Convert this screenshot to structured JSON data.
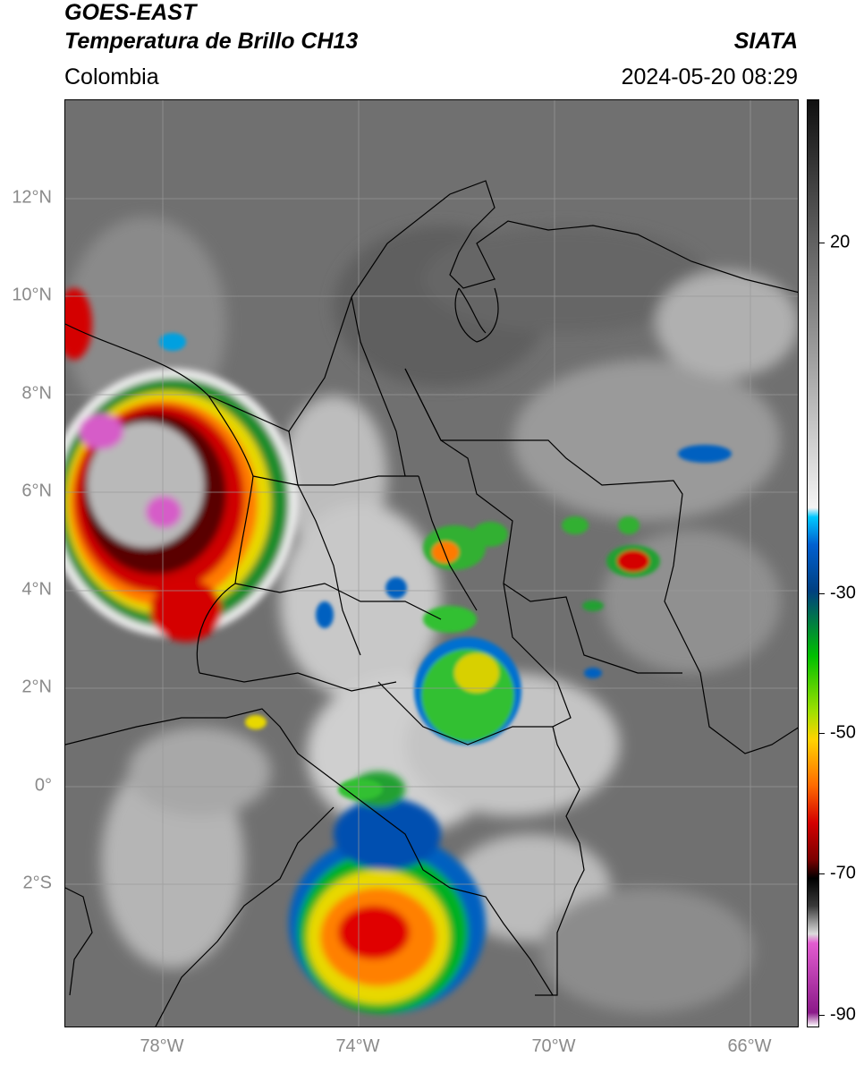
{
  "header": {
    "satellite": "GOES-EAST",
    "product": "Temperatura de Brillo CH13",
    "organization": "SIATA",
    "region": "Colombia",
    "timestamp": "2024-05-20 08:29"
  },
  "map": {
    "lat_ticks": [
      {
        "value": 12,
        "label": "12°N"
      },
      {
        "value": 10,
        "label": "10°N"
      },
      {
        "value": 8,
        "label": "8°N"
      },
      {
        "value": 6,
        "label": "6°N"
      },
      {
        "value": 4,
        "label": "4°N"
      },
      {
        "value": 2,
        "label": "2°N"
      },
      {
        "value": 0,
        "label": "0°"
      },
      {
        "value": -2,
        "label": "2°S"
      }
    ],
    "lon_ticks": [
      {
        "value": -78,
        "label": "78°W"
      },
      {
        "value": -74,
        "label": "74°W"
      },
      {
        "value": -70,
        "label": "70°W"
      },
      {
        "value": -66,
        "label": "66°W"
      }
    ],
    "extent": {
      "lon_min": -80,
      "lon_max": -65,
      "lat_min": -5,
      "lat_max": 14
    },
    "grid": true
  },
  "colorbar": {
    "ticks": [
      {
        "value": 20,
        "label": "20"
      },
      {
        "value": -30,
        "label": "-30"
      },
      {
        "value": -50,
        "label": "-50"
      },
      {
        "value": -70,
        "label": "-70"
      },
      {
        "value": -90,
        "label": "-90"
      }
    ],
    "range": [
      -92,
      42
    ],
    "colors": [
      "#ffffff",
      "#8b1a89",
      "#e25cd0",
      "#dcdcdc",
      "#3a3a3a",
      "#000000",
      "#7a0000",
      "#d40000",
      "#ff6a00",
      "#ffd400",
      "#a0e000",
      "#00c000",
      "#004080",
      "#0060d0",
      "#00c8ff",
      "#f4f4f4",
      "#a0a0a0",
      "#505050",
      "#101010"
    ]
  }
}
